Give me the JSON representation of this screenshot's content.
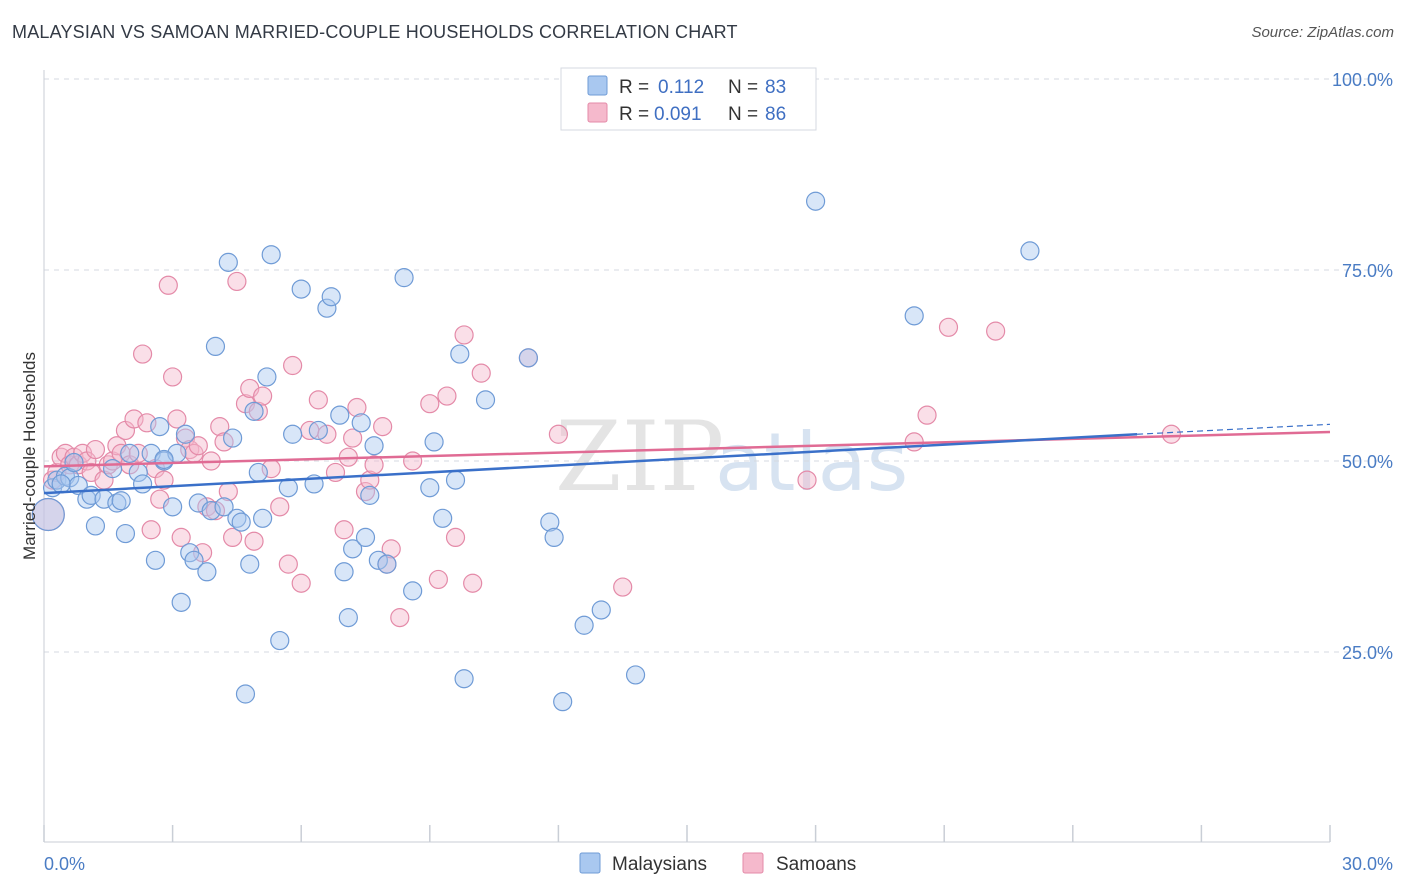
{
  "header": {
    "title": "MALAYSIAN VS SAMOAN MARRIED-COUPLE HOUSEHOLDS CORRELATION CHART",
    "source": "Source: ZipAtlas.com"
  },
  "colors": {
    "blue_fill": "#a9c8f0",
    "blue_stroke": "#6f9bd6",
    "blue_line": "#3a70c9",
    "pink_fill": "#f5b9cc",
    "pink_stroke": "#e48aa8",
    "pink_line": "#e06b94",
    "grid": "#d5d9e0",
    "axis_text": "#4a7cc4"
  },
  "legend": {
    "rows": [
      {
        "r_label": "R =",
        "r_value": "0.112",
        "n_label": "N =",
        "n_value": "83"
      },
      {
        "r_label": "R =",
        "r_value": "0.091",
        "n_label": "N =",
        "n_value": "86"
      }
    ]
  },
  "bottom_legend": [
    "Malaysians",
    "Samoans"
  ],
  "watermark": {
    "zip": "ZIP",
    "atlas": "atlas"
  },
  "chart_data": {
    "type": "scatter",
    "title": "MALAYSIAN VS SAMOAN MARRIED-COUPLE HOUSEHOLDS CORRELATION CHART",
    "xlabel": "",
    "ylabel": "Married-couple Households",
    "xlim": [
      0,
      30
    ],
    "ylim": [
      0,
      104
    ],
    "x_tick_labels": [
      "0.0%",
      "30.0%"
    ],
    "y_ticks": [
      25,
      50,
      75,
      100
    ],
    "y_tick_labels": [
      "25.0%",
      "50.0%",
      "75.0%",
      "100.0%"
    ],
    "grid": true,
    "legend_position": "top-center",
    "series": [
      {
        "name": "Malaysians",
        "r": 0.112,
        "n": 83,
        "trend": {
          "x": [
            0,
            25.5
          ],
          "y": [
            45.8,
            53.5
          ]
        },
        "trend_dashed": {
          "x": [
            25.5,
            30
          ],
          "y": [
            53.5,
            54.8
          ]
        },
        "points": [
          [
            0.1,
            43.0
          ],
          [
            0.2,
            46.5
          ],
          [
            0.3,
            47.5
          ],
          [
            0.5,
            48.0
          ],
          [
            0.6,
            47.8
          ],
          [
            0.7,
            49.8
          ],
          [
            0.8,
            46.8
          ],
          [
            1.0,
            45.0
          ],
          [
            1.1,
            45.5
          ],
          [
            1.2,
            41.5
          ],
          [
            1.4,
            45.0
          ],
          [
            1.6,
            49.0
          ],
          [
            1.7,
            44.5
          ],
          [
            1.8,
            44.8
          ],
          [
            1.9,
            40.5
          ],
          [
            2.0,
            51.0
          ],
          [
            2.2,
            48.5
          ],
          [
            2.3,
            47.0
          ],
          [
            2.5,
            51.0
          ],
          [
            2.6,
            37.0
          ],
          [
            2.7,
            54.5
          ],
          [
            2.8,
            50.0
          ],
          [
            3.0,
            44.0
          ],
          [
            3.1,
            51.0
          ],
          [
            3.2,
            31.5
          ],
          [
            3.3,
            53.5
          ],
          [
            3.4,
            38.0
          ],
          [
            3.5,
            37.0
          ],
          [
            3.6,
            44.5
          ],
          [
            3.8,
            35.5
          ],
          [
            3.9,
            43.5
          ],
          [
            4.0,
            65.0
          ],
          [
            4.2,
            44.0
          ],
          [
            4.3,
            76.0
          ],
          [
            4.4,
            53.0
          ],
          [
            4.5,
            42.5
          ],
          [
            4.6,
            42.0
          ],
          [
            4.7,
            19.5
          ],
          [
            4.8,
            36.5
          ],
          [
            4.9,
            56.5
          ],
          [
            5.0,
            48.5
          ],
          [
            5.1,
            42.5
          ],
          [
            5.2,
            61.0
          ],
          [
            5.3,
            77.0
          ],
          [
            5.5,
            26.5
          ],
          [
            5.7,
            46.5
          ],
          [
            5.8,
            53.5
          ],
          [
            6.0,
            72.5
          ],
          [
            6.3,
            47.0
          ],
          [
            6.4,
            54.0
          ],
          [
            6.6,
            70.0
          ],
          [
            6.7,
            71.5
          ],
          [
            6.9,
            56.0
          ],
          [
            7.0,
            35.5
          ],
          [
            7.1,
            29.5
          ],
          [
            7.2,
            38.5
          ],
          [
            7.5,
            40.0
          ],
          [
            7.6,
            45.5
          ],
          [
            7.7,
            52.0
          ],
          [
            7.8,
            37.0
          ],
          [
            8.0,
            36.5
          ],
          [
            8.4,
            74.0
          ],
          [
            8.6,
            33.0
          ],
          [
            9.0,
            46.5
          ],
          [
            9.1,
            52.5
          ],
          [
            9.3,
            42.5
          ],
          [
            9.6,
            47.5
          ],
          [
            9.7,
            64.0
          ],
          [
            9.8,
            21.5
          ],
          [
            10.3,
            58.0
          ],
          [
            11.3,
            63.5
          ],
          [
            11.8,
            42.0
          ],
          [
            11.9,
            40.0
          ],
          [
            12.1,
            18.5
          ],
          [
            12.6,
            28.5
          ],
          [
            13.0,
            30.5
          ],
          [
            13.8,
            22.0
          ],
          [
            18.0,
            84.0
          ],
          [
            20.3,
            69.0
          ],
          [
            23.0,
            77.5
          ],
          [
            2.8,
            50.2
          ],
          [
            7.4,
            55.0
          ],
          [
            0.4,
            47.0
          ]
        ]
      },
      {
        "name": "Samoans",
        "r": 0.091,
        "n": 86,
        "trend": {
          "x": [
            0,
            30
          ],
          "y": [
            49.3,
            53.8
          ]
        },
        "points": [
          [
            0.1,
            43.0
          ],
          [
            0.2,
            47.5
          ],
          [
            0.3,
            48.5
          ],
          [
            0.4,
            50.5
          ],
          [
            0.5,
            51.0
          ],
          [
            0.6,
            49.5
          ],
          [
            0.7,
            50.5
          ],
          [
            0.8,
            49.5
          ],
          [
            0.9,
            51.0
          ],
          [
            1.0,
            50.0
          ],
          [
            1.1,
            48.5
          ],
          [
            1.2,
            51.5
          ],
          [
            1.4,
            47.5
          ],
          [
            1.5,
            49.5
          ],
          [
            1.6,
            50.0
          ],
          [
            1.7,
            52.0
          ],
          [
            1.8,
            51.0
          ],
          [
            1.9,
            54.0
          ],
          [
            2.0,
            49.5
          ],
          [
            2.1,
            55.5
          ],
          [
            2.2,
            51.0
          ],
          [
            2.3,
            64.0
          ],
          [
            2.4,
            55.0
          ],
          [
            2.5,
            41.0
          ],
          [
            2.6,
            49.0
          ],
          [
            2.7,
            45.0
          ],
          [
            2.8,
            47.5
          ],
          [
            2.9,
            73.0
          ],
          [
            3.0,
            61.0
          ],
          [
            3.1,
            55.5
          ],
          [
            3.2,
            40.0
          ],
          [
            3.3,
            53.0
          ],
          [
            3.4,
            51.5
          ],
          [
            3.5,
            51.0
          ],
          [
            3.6,
            52.0
          ],
          [
            3.7,
            38.0
          ],
          [
            3.8,
            44.0
          ],
          [
            3.9,
            50.0
          ],
          [
            4.0,
            43.5
          ],
          [
            4.1,
            54.5
          ],
          [
            4.2,
            52.5
          ],
          [
            4.3,
            46.0
          ],
          [
            4.4,
            40.0
          ],
          [
            4.5,
            73.5
          ],
          [
            4.7,
            57.5
          ],
          [
            4.8,
            59.5
          ],
          [
            4.9,
            39.5
          ],
          [
            5.0,
            56.5
          ],
          [
            5.1,
            58.5
          ],
          [
            5.3,
            49.0
          ],
          [
            5.5,
            44.0
          ],
          [
            5.7,
            36.5
          ],
          [
            5.8,
            62.5
          ],
          [
            6.0,
            34.0
          ],
          [
            6.2,
            54.0
          ],
          [
            6.4,
            58.0
          ],
          [
            6.6,
            53.5
          ],
          [
            6.8,
            48.5
          ],
          [
            7.0,
            41.0
          ],
          [
            7.1,
            50.5
          ],
          [
            7.2,
            53.0
          ],
          [
            7.3,
            57.0
          ],
          [
            7.5,
            46.0
          ],
          [
            7.6,
            47.5
          ],
          [
            7.7,
            49.5
          ],
          [
            7.9,
            54.5
          ],
          [
            8.0,
            36.5
          ],
          [
            8.1,
            38.5
          ],
          [
            8.3,
            29.5
          ],
          [
            8.6,
            50.0
          ],
          [
            9.0,
            57.5
          ],
          [
            9.2,
            34.5
          ],
          [
            9.4,
            58.5
          ],
          [
            9.6,
            40.0
          ],
          [
            9.8,
            66.5
          ],
          [
            10.0,
            34.0
          ],
          [
            10.2,
            61.5
          ],
          [
            11.3,
            63.5
          ],
          [
            12.0,
            53.5
          ],
          [
            13.5,
            33.5
          ],
          [
            17.8,
            47.5
          ],
          [
            20.3,
            52.5
          ],
          [
            20.6,
            56.0
          ],
          [
            21.1,
            67.5
          ],
          [
            22.2,
            67.0
          ],
          [
            26.3,
            53.5
          ]
        ]
      }
    ]
  }
}
